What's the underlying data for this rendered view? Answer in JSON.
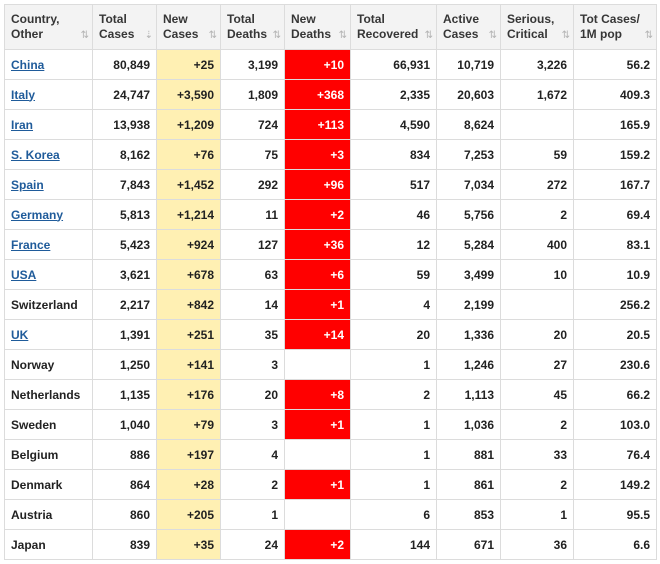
{
  "headers": [
    [
      "Country,",
      "Other"
    ],
    [
      "Total",
      "Cases"
    ],
    [
      "New",
      "Cases"
    ],
    [
      "Total",
      "Deaths"
    ],
    [
      "New",
      "Deaths"
    ],
    [
      "Total",
      "Recovered"
    ],
    [
      "Active",
      "Cases"
    ],
    [
      "Serious,",
      "Critical"
    ],
    [
      "Tot Cases/",
      "1M pop"
    ]
  ],
  "sort_icons": [
    "⇅",
    "⇣",
    "⇅",
    "⇅",
    "⇅",
    "⇅",
    "⇅",
    "⇅",
    "⇅"
  ],
  "colors": {
    "new_cases_bg": "#fff0b3",
    "new_deaths_bg": "#ff0000",
    "link": "#1f5b9a"
  },
  "rows": [
    {
      "country": "China",
      "link": true,
      "total_cases": "80,849",
      "new_cases": "+25",
      "total_deaths": "3,199",
      "new_deaths": "+10",
      "total_recovered": "66,931",
      "active_cases": "10,719",
      "serious": "3,226",
      "per_million": "56.2"
    },
    {
      "country": "Italy",
      "link": true,
      "total_cases": "24,747",
      "new_cases": "+3,590",
      "total_deaths": "1,809",
      "new_deaths": "+368",
      "total_recovered": "2,335",
      "active_cases": "20,603",
      "serious": "1,672",
      "per_million": "409.3"
    },
    {
      "country": "Iran",
      "link": true,
      "total_cases": "13,938",
      "new_cases": "+1,209",
      "total_deaths": "724",
      "new_deaths": "+113",
      "total_recovered": "4,590",
      "active_cases": "8,624",
      "serious": "",
      "per_million": "165.9"
    },
    {
      "country": "S. Korea",
      "link": true,
      "total_cases": "8,162",
      "new_cases": "+76",
      "total_deaths": "75",
      "new_deaths": "+3",
      "total_recovered": "834",
      "active_cases": "7,253",
      "serious": "59",
      "per_million": "159.2"
    },
    {
      "country": "Spain",
      "link": true,
      "total_cases": "7,843",
      "new_cases": "+1,452",
      "total_deaths": "292",
      "new_deaths": "+96",
      "total_recovered": "517",
      "active_cases": "7,034",
      "serious": "272",
      "per_million": "167.7"
    },
    {
      "country": "Germany",
      "link": true,
      "total_cases": "5,813",
      "new_cases": "+1,214",
      "total_deaths": "11",
      "new_deaths": "+2",
      "total_recovered": "46",
      "active_cases": "5,756",
      "serious": "2",
      "per_million": "69.4"
    },
    {
      "country": "France",
      "link": true,
      "total_cases": "5,423",
      "new_cases": "+924",
      "total_deaths": "127",
      "new_deaths": "+36",
      "total_recovered": "12",
      "active_cases": "5,284",
      "serious": "400",
      "per_million": "83.1"
    },
    {
      "country": "USA",
      "link": true,
      "total_cases": "3,621",
      "new_cases": "+678",
      "total_deaths": "63",
      "new_deaths": "+6",
      "total_recovered": "59",
      "active_cases": "3,499",
      "serious": "10",
      "per_million": "10.9"
    },
    {
      "country": "Switzerland",
      "link": false,
      "total_cases": "2,217",
      "new_cases": "+842",
      "total_deaths": "14",
      "new_deaths": "+1",
      "total_recovered": "4",
      "active_cases": "2,199",
      "serious": "",
      "per_million": "256.2"
    },
    {
      "country": "UK",
      "link": true,
      "total_cases": "1,391",
      "new_cases": "+251",
      "total_deaths": "35",
      "new_deaths": "+14",
      "total_recovered": "20",
      "active_cases": "1,336",
      "serious": "20",
      "per_million": "20.5"
    },
    {
      "country": "Norway",
      "link": false,
      "total_cases": "1,250",
      "new_cases": "+141",
      "total_deaths": "3",
      "new_deaths": "",
      "total_recovered": "1",
      "active_cases": "1,246",
      "serious": "27",
      "per_million": "230.6"
    },
    {
      "country": "Netherlands",
      "link": false,
      "total_cases": "1,135",
      "new_cases": "+176",
      "total_deaths": "20",
      "new_deaths": "+8",
      "total_recovered": "2",
      "active_cases": "1,113",
      "serious": "45",
      "per_million": "66.2"
    },
    {
      "country": "Sweden",
      "link": false,
      "total_cases": "1,040",
      "new_cases": "+79",
      "total_deaths": "3",
      "new_deaths": "+1",
      "total_recovered": "1",
      "active_cases": "1,036",
      "serious": "2",
      "per_million": "103.0"
    },
    {
      "country": "Belgium",
      "link": false,
      "total_cases": "886",
      "new_cases": "+197",
      "total_deaths": "4",
      "new_deaths": "",
      "total_recovered": "1",
      "active_cases": "881",
      "serious": "33",
      "per_million": "76.4"
    },
    {
      "country": "Denmark",
      "link": false,
      "total_cases": "864",
      "new_cases": "+28",
      "total_deaths": "2",
      "new_deaths": "+1",
      "total_recovered": "1",
      "active_cases": "861",
      "serious": "2",
      "per_million": "149.2"
    },
    {
      "country": "Austria",
      "link": false,
      "total_cases": "860",
      "new_cases": "+205",
      "total_deaths": "1",
      "new_deaths": "",
      "total_recovered": "6",
      "active_cases": "853",
      "serious": "1",
      "per_million": "95.5"
    },
    {
      "country": "Japan",
      "link": false,
      "total_cases": "839",
      "new_cases": "+35",
      "total_deaths": "24",
      "new_deaths": "+2",
      "total_recovered": "144",
      "active_cases": "671",
      "serious": "36",
      "per_million": "6.6"
    }
  ]
}
